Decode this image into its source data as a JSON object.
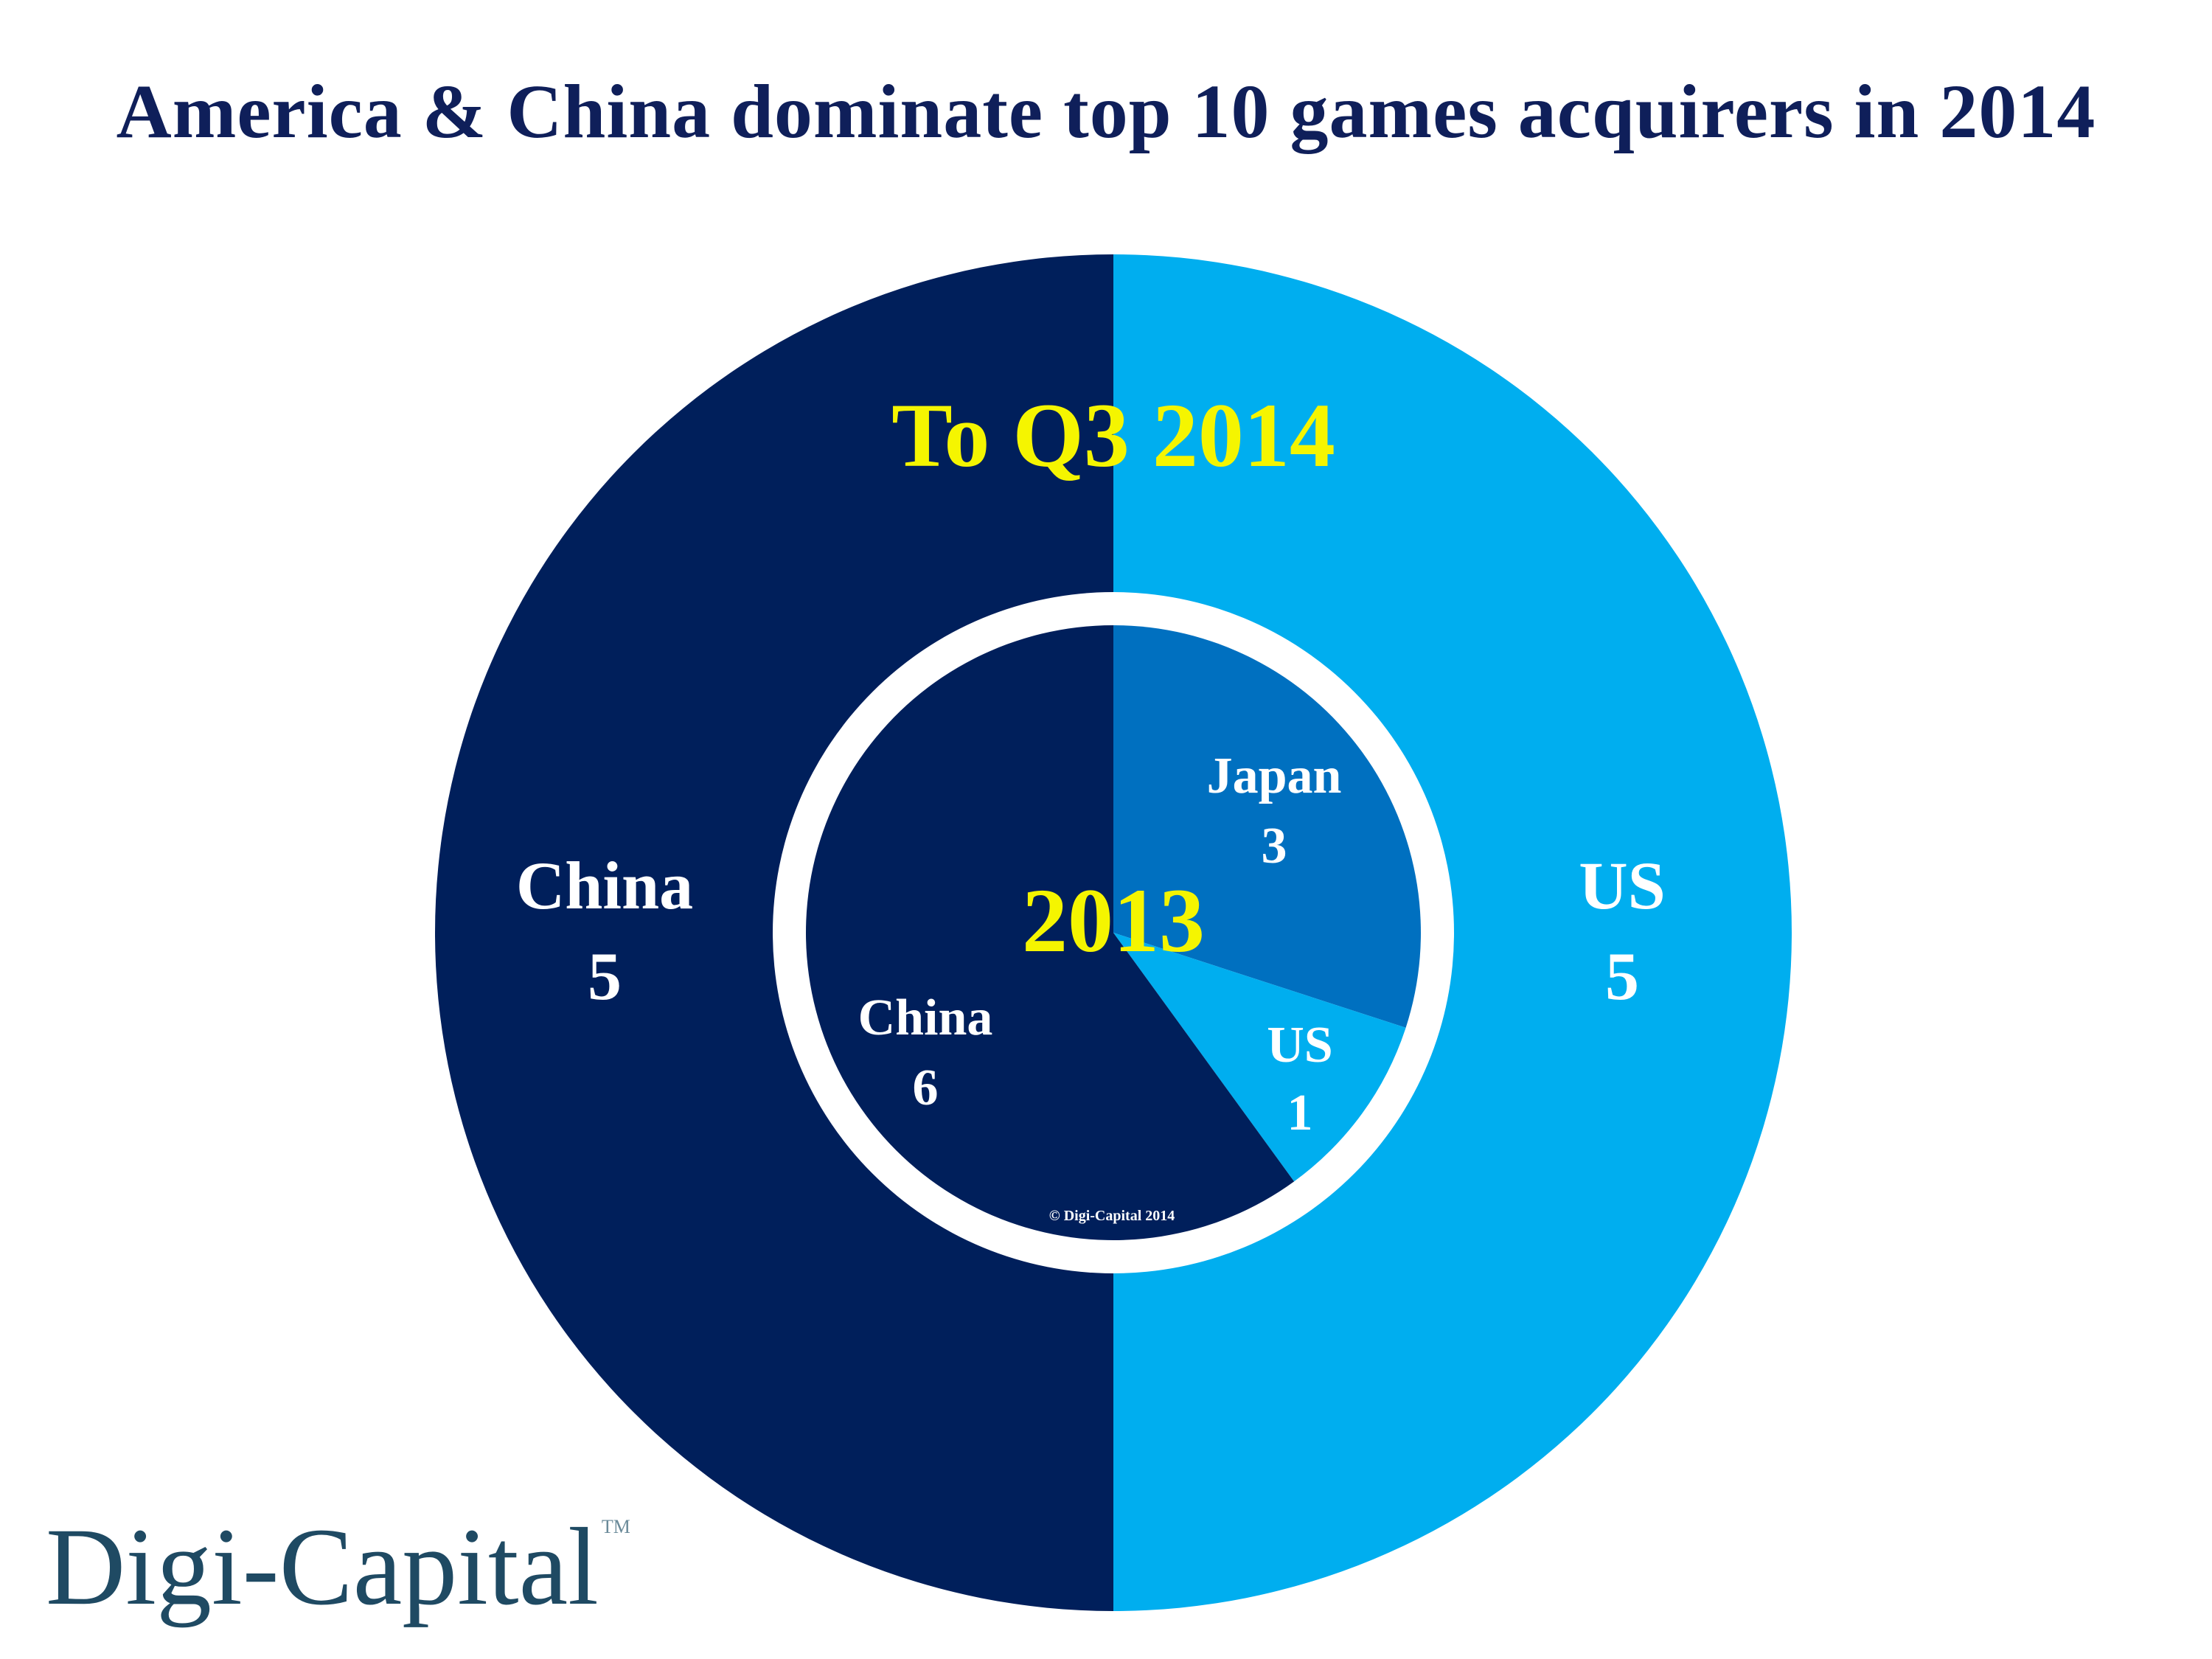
{
  "title": "America & China dominate top 10 games acquirers in 2014",
  "logo": {
    "text": "Digi-Capital",
    "tm": "TM"
  },
  "copyright": "© Digi-Capital 2014",
  "colors": {
    "china": "#001f5b",
    "us": "#00aeef",
    "japan": "#0070c0",
    "year_label": "#f5f500",
    "slice_label": "#ffffff",
    "ring_gap": "#ffffff"
  },
  "chart_data": [
    {
      "type": "pie",
      "title": "To Q3 2014",
      "categories": [
        "US",
        "China"
      ],
      "values": [
        5,
        5
      ],
      "ring": "outer"
    },
    {
      "type": "pie",
      "title": "2013",
      "categories": [
        "Japan",
        "US",
        "China"
      ],
      "values": [
        3,
        1,
        6
      ],
      "ring": "inner"
    }
  ]
}
